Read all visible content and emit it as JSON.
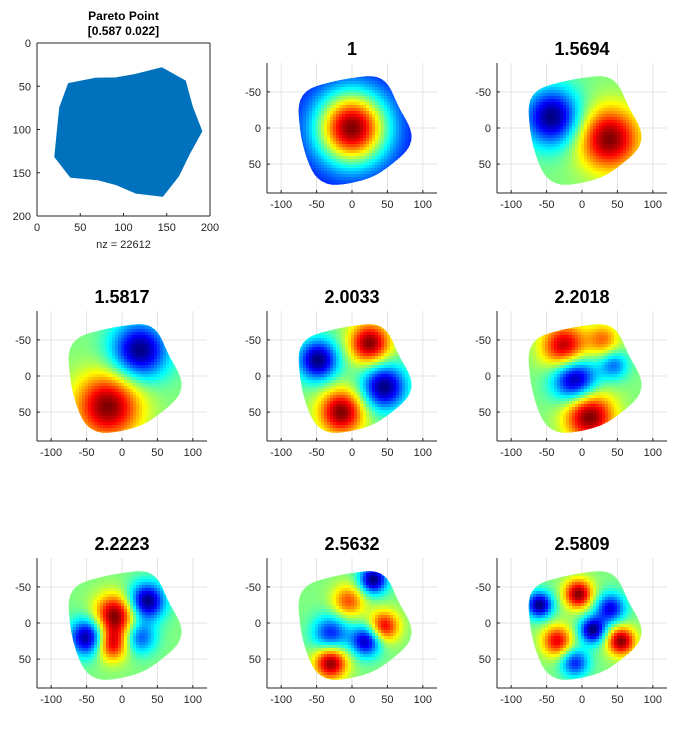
{
  "chart_data": [
    {
      "type": "scatter",
      "title": "Pareto Point",
      "subtitle": "[0.587 0.022]",
      "xlabel": "nz = 22612",
      "xlim": [
        0,
        200
      ],
      "ylim": [
        0,
        200
      ],
      "y_reversed": true,
      "xticks": [
        0,
        50,
        100,
        150,
        200
      ],
      "yticks": [
        0,
        50,
        100,
        150,
        200
      ],
      "grid": false,
      "color": "#0072bd",
      "shape_outline_theta_deg": [
        0,
        20,
        40,
        60,
        80,
        100,
        120,
        140,
        160,
        180,
        200,
        220,
        240,
        260,
        280,
        300,
        320,
        340
      ],
      "shape_outline_radius": [
        88,
        78,
        80,
        86,
        72,
        62,
        64,
        82,
        86,
        78,
        80,
        85,
        70,
        62,
        66,
        84,
        90,
        82
      ],
      "center": [
        102,
        102
      ]
    },
    {
      "type": "heatmap",
      "title": "1",
      "xlim": [
        -120,
        120
      ],
      "ylim": [
        -90,
        90
      ],
      "y_reversed": true,
      "xticks": [
        -100,
        -50,
        0,
        50,
        100
      ],
      "yticks": [
        -50,
        0,
        50
      ],
      "grid": true,
      "colormap": "jet",
      "peaks": [
        {
          "x": 0,
          "y": 0,
          "v": 1.0,
          "s": 35
        }
      ]
    },
    {
      "type": "heatmap",
      "title": "1.5694",
      "xlim": [
        -120,
        120
      ],
      "ylim": [
        -90,
        90
      ],
      "y_reversed": true,
      "xticks": [
        -100,
        -50,
        0,
        50,
        100
      ],
      "yticks": [
        -50,
        0,
        50
      ],
      "grid": true,
      "colormap": "jet",
      "peaks": [
        {
          "x": -42,
          "y": -15,
          "v": -1.0,
          "s": 28
        },
        {
          "x": 38,
          "y": 15,
          "v": 1.0,
          "s": 30
        }
      ]
    },
    {
      "type": "heatmap",
      "title": "1.5817",
      "xlim": [
        -120,
        120
      ],
      "ylim": [
        -90,
        90
      ],
      "y_reversed": true,
      "xticks": [
        -100,
        -50,
        0,
        50,
        100
      ],
      "yticks": [
        -50,
        0,
        50
      ],
      "grid": true,
      "colormap": "jet",
      "peaks": [
        {
          "x": 25,
          "y": -35,
          "v": -1.0,
          "s": 28
        },
        {
          "x": -20,
          "y": 42,
          "v": 1.0,
          "s": 32
        }
      ]
    },
    {
      "type": "heatmap",
      "title": "2.0033",
      "xlim": [
        -120,
        120
      ],
      "ylim": [
        -90,
        90
      ],
      "y_reversed": true,
      "xticks": [
        -100,
        -50,
        0,
        50,
        100
      ],
      "yticks": [
        -50,
        0,
        50
      ],
      "grid": true,
      "colormap": "jet",
      "peaks": [
        {
          "x": -48,
          "y": -22,
          "v": -1.0,
          "s": 20
        },
        {
          "x": 25,
          "y": -45,
          "v": 1.0,
          "s": 20
        },
        {
          "x": 45,
          "y": 15,
          "v": -1.0,
          "s": 22
        },
        {
          "x": -15,
          "y": 50,
          "v": 1.0,
          "s": 22
        }
      ]
    },
    {
      "type": "heatmap",
      "title": "2.2018",
      "xlim": [
        -120,
        120
      ],
      "ylim": [
        -90,
        90
      ],
      "y_reversed": true,
      "xticks": [
        -100,
        -50,
        0,
        50,
        100
      ],
      "yticks": [
        -50,
        0,
        50
      ],
      "grid": true,
      "colormap": "jet",
      "peaks": [
        {
          "x": -25,
          "y": -40,
          "v": 0.9,
          "s": 22
        },
        {
          "x": 30,
          "y": -50,
          "v": 0.5,
          "s": 16
        },
        {
          "x": -10,
          "y": 5,
          "v": -1.0,
          "s": 22
        },
        {
          "x": 45,
          "y": -15,
          "v": -0.5,
          "s": 14
        },
        {
          "x": 10,
          "y": 55,
          "v": 1.0,
          "s": 24
        }
      ]
    },
    {
      "type": "heatmap",
      "title": "2.2223",
      "xlim": [
        -120,
        120
      ],
      "ylim": [
        -90,
        90
      ],
      "y_reversed": true,
      "xticks": [
        -100,
        -50,
        0,
        50,
        100
      ],
      "yticks": [
        -50,
        0,
        50
      ],
      "grid": true,
      "colormap": "jet",
      "peaks": [
        {
          "x": -48,
          "y": 20,
          "v": -1.0,
          "s": 18
        },
        {
          "x": -10,
          "y": -10,
          "v": 1.0,
          "s": 20
        },
        {
          "x": -15,
          "y": 30,
          "v": 0.8,
          "s": 16
        },
        {
          "x": 35,
          "y": -30,
          "v": -1.0,
          "s": 18
        },
        {
          "x": 25,
          "y": 20,
          "v": -0.6,
          "s": 16
        }
      ]
    },
    {
      "type": "heatmap",
      "title": "2.5632",
      "xlim": [
        -120,
        120
      ],
      "ylim": [
        -90,
        90
      ],
      "y_reversed": true,
      "xticks": [
        -100,
        -50,
        0,
        50,
        100
      ],
      "yticks": [
        -50,
        0,
        50
      ],
      "grid": true,
      "colormap": "jet",
      "peaks": [
        {
          "x": 30,
          "y": -60,
          "v": -1.0,
          "s": 14
        },
        {
          "x": -5,
          "y": -30,
          "v": 0.6,
          "s": 16
        },
        {
          "x": 45,
          "y": 5,
          "v": 0.8,
          "s": 15
        },
        {
          "x": -30,
          "y": 15,
          "v": -0.7,
          "s": 18
        },
        {
          "x": 20,
          "y": 25,
          "v": -0.9,
          "s": 15
        },
        {
          "x": -30,
          "y": 55,
          "v": 1.0,
          "s": 16
        }
      ]
    },
    {
      "type": "heatmap",
      "title": "2.5809",
      "xlim": [
        -120,
        120
      ],
      "ylim": [
        -90,
        90
      ],
      "y_reversed": true,
      "xticks": [
        -100,
        -50,
        0,
        50,
        100
      ],
      "yticks": [
        -50,
        0,
        50
      ],
      "grid": true,
      "colormap": "jet",
      "peaks": [
        {
          "x": -60,
          "y": -25,
          "v": -1.0,
          "s": 13
        },
        {
          "x": -5,
          "y": -40,
          "v": 1.0,
          "s": 14
        },
        {
          "x": 40,
          "y": -20,
          "v": -0.8,
          "s": 15
        },
        {
          "x": 15,
          "y": 10,
          "v": -1.0,
          "s": 13
        },
        {
          "x": -35,
          "y": 25,
          "v": 0.8,
          "s": 15
        },
        {
          "x": 55,
          "y": 25,
          "v": 1.0,
          "s": 14
        },
        {
          "x": -10,
          "y": 55,
          "v": -0.7,
          "s": 14
        }
      ]
    }
  ]
}
